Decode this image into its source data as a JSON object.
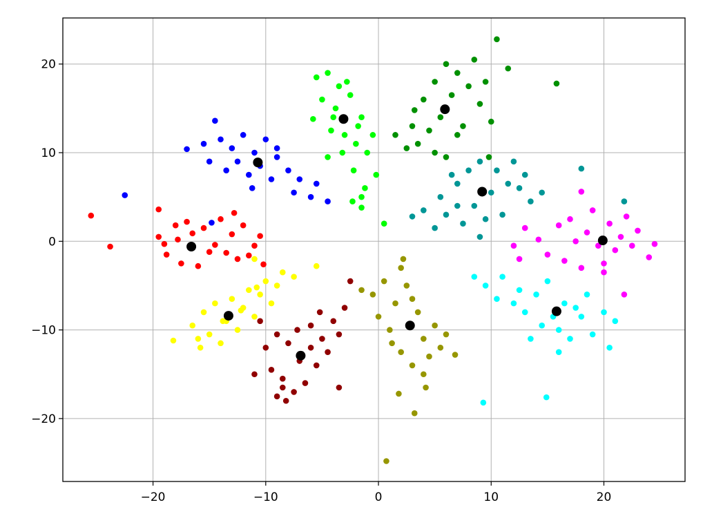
{
  "chart_data": {
    "type": "scatter",
    "xlim": [
      -28,
      27.2
    ],
    "ylim": [
      -27.1,
      25.2
    ],
    "xticks": [
      {
        "value": -20,
        "label": "−20"
      },
      {
        "value": -10,
        "label": "−10"
      },
      0,
      10,
      20
    ],
    "yticks": [
      {
        "value": -20,
        "label": "−20"
      },
      {
        "value": -10,
        "label": "−10"
      },
      0,
      10,
      20
    ],
    "grid": true,
    "series": [
      {
        "color": "#ff0000",
        "x": [
          -19.5,
          -18.8,
          -18,
          -17.5,
          -17,
          -16,
          -15.5,
          -15,
          -14,
          -13,
          -12.5,
          -12,
          -11,
          -10.5,
          -19,
          -17.8,
          -16.5,
          -14.5,
          -13.5,
          -11.5,
          -25.5,
          -23.8,
          -19.5,
          -12.8,
          -10.2
        ],
        "y": [
          0.5,
          -1.5,
          1.8,
          -2.5,
          2.2,
          -2.8,
          1.5,
          -1.2,
          2.5,
          0.8,
          -2,
          1.8,
          -0.5,
          0.6,
          -0.3,
          0.2,
          0.9,
          -0.4,
          -1.3,
          -1.6,
          2.9,
          -0.6,
          3.6,
          3.2,
          -2.6
        ]
      },
      {
        "color": "#0000ff",
        "x": [
          -15.5,
          -15,
          -14,
          -13.5,
          -13,
          -12,
          -11.5,
          -11,
          -10,
          -9.5,
          -9,
          -8,
          -7.5,
          -7,
          -6,
          -5.5,
          -12.5,
          -10.5,
          -9,
          -11.2,
          -22.5,
          -17,
          -14.5,
          -14.8,
          -4.5
        ],
        "y": [
          11,
          9,
          11.5,
          8,
          10.5,
          12,
          7.5,
          10,
          11.5,
          7,
          9.5,
          8,
          5.5,
          7,
          5,
          6.5,
          9,
          8.5,
          10.5,
          6,
          5.2,
          10.4,
          13.6,
          2.1,
          4.5
        ]
      },
      {
        "color": "#00ff00",
        "x": [
          -5.5,
          -5,
          -4.5,
          -4,
          -3.5,
          -3,
          -2.5,
          -2,
          -1.5,
          -1,
          -0.5,
          -4.2,
          -3.2,
          -2.2,
          -1.2,
          -3.8,
          -2.8,
          -1.8,
          -5.8,
          -0.2,
          -1.5,
          -1.5,
          -2.3,
          0.5,
          -4.5
        ],
        "y": [
          18.5,
          16,
          19,
          14,
          17.5,
          12,
          16.5,
          11,
          14,
          10,
          12,
          12.5,
          10,
          8,
          6,
          15,
          18,
          13,
          13.8,
          7.5,
          5,
          3.8,
          4.5,
          2,
          9.5
        ]
      },
      {
        "color": "#009000",
        "x": [
          2.5,
          3,
          3.5,
          4,
          4.5,
          5,
          5.5,
          6,
          6.5,
          7,
          7.5,
          8,
          8.5,
          9,
          9.5,
          5,
          7,
          6,
          3.2,
          10,
          15.8,
          10.5,
          11.5,
          1.5,
          9.8
        ],
        "y": [
          10.5,
          13,
          11,
          16,
          12.5,
          18,
          14,
          20,
          16.5,
          19,
          13,
          17.5,
          20.5,
          15.5,
          18,
          10,
          12,
          9.5,
          14.8,
          13.5,
          17.8,
          22.8,
          19.5,
          12,
          9.5
        ]
      },
      {
        "color": "#009696",
        "x": [
          4,
          5,
          5.5,
          6,
          7,
          7.5,
          8,
          8.5,
          9,
          10,
          10.5,
          11,
          12,
          12.5,
          13,
          13.5,
          7,
          9.5,
          11.5,
          6.5,
          18,
          21.8,
          3,
          14.5,
          9
        ],
        "y": [
          3.5,
          1.5,
          5,
          3,
          6.5,
          2,
          8,
          4,
          9,
          5.5,
          8,
          3,
          9,
          6,
          7.5,
          4.5,
          4,
          2.5,
          6.5,
          7.5,
          8.2,
          4.5,
          2.8,
          5.5,
          0.5
        ]
      },
      {
        "color": "#ff00ff",
        "x": [
          14.2,
          15,
          16,
          16.5,
          17,
          18,
          18.5,
          19,
          20,
          20.5,
          21,
          22,
          22.5,
          23,
          24,
          24.5,
          17.5,
          19.5,
          21.5,
          20,
          18,
          12,
          13,
          21.8,
          12.5
        ],
        "y": [
          0.2,
          -1.5,
          1.8,
          -2.2,
          2.5,
          -3,
          1,
          3.5,
          -2.5,
          2,
          -1,
          2.8,
          -0.5,
          1.2,
          -1.8,
          -0.3,
          0,
          -0.5,
          0.5,
          -3.5,
          5.6,
          -0.5,
          1.5,
          -6,
          -2
        ]
      },
      {
        "color": "#00ffff",
        "x": [
          9.5,
          10.5,
          11,
          12,
          12.5,
          13,
          14,
          14.5,
          15,
          16,
          16.5,
          17,
          18,
          18.5,
          19,
          20,
          20.5,
          21,
          15.5,
          17.5,
          9.3,
          14.9,
          8.5,
          13.5,
          16
        ],
        "y": [
          -5,
          -6.5,
          -4,
          -7,
          -5.5,
          -8,
          -6,
          -9.5,
          -4.5,
          -10,
          -7,
          -11,
          -8.5,
          -6,
          -10.5,
          -8,
          -12,
          -9,
          -8.5,
          -7.5,
          -18.2,
          -17.6,
          -4,
          -11,
          -12.5
        ]
      },
      {
        "color": "#969600",
        "x": [
          -0.5,
          0,
          0.5,
          1,
          1.5,
          2,
          2.5,
          3,
          3.5,
          4,
          4.5,
          5,
          5.5,
          6,
          2,
          3,
          4,
          1.2,
          0.7,
          3.2,
          -1.5,
          2.2,
          6.8,
          1.8,
          4.2
        ],
        "y": [
          -6,
          -8.5,
          -4.5,
          -10,
          -7,
          -12.5,
          -5,
          -14,
          -8,
          -11,
          -13,
          -9.5,
          -12,
          -10.5,
          -3,
          -6.5,
          -15,
          -11.5,
          -24.8,
          -19.4,
          -5.5,
          -2,
          -12.8,
          -17.2,
          -16.5
        ]
      },
      {
        "color": "#900000",
        "x": [
          -10,
          -9.5,
          -9,
          -8.5,
          -8,
          -7.5,
          -7,
          -6.5,
          -6,
          -5.5,
          -5,
          -4.5,
          -4,
          -3.5,
          -7.2,
          -6,
          -8.5,
          -3,
          -11,
          -8.2,
          -10.5,
          -3.5,
          -5.2,
          -2.5,
          -9
        ],
        "y": [
          -12,
          -14.5,
          -10.5,
          -15.5,
          -11.5,
          -17,
          -13.5,
          -16,
          -9.5,
          -14,
          -11,
          -12.5,
          -9,
          -10.5,
          -10,
          -12,
          -16.5,
          -7.5,
          -15,
          -18,
          -9,
          -16.5,
          -8,
          -4.5,
          -17.5
        ]
      },
      {
        "color": "#ffff00",
        "x": [
          -16.5,
          -16,
          -15.5,
          -15,
          -14.5,
          -14,
          -13.5,
          -13,
          -12.5,
          -12,
          -11.5,
          -11,
          -10.5,
          -10,
          -9.5,
          -9,
          -8.5,
          -13.8,
          -12.2,
          -10.8,
          -18.2,
          -15.8,
          -7.5,
          -5.5,
          -11
        ],
        "y": [
          -9.5,
          -11,
          -8,
          -10.5,
          -7,
          -11.5,
          -9,
          -6.5,
          -10,
          -7.5,
          -5.5,
          -8.5,
          -6,
          -4.5,
          -7,
          -5,
          -3.5,
          -9,
          -7.8,
          -5.2,
          -11.2,
          -12,
          -4,
          -2.8,
          -2
        ]
      },
      {
        "color": "#000000",
        "marker_size": 7,
        "x": [
          -16.6,
          -10.7,
          -3.1,
          5.9,
          9.2,
          19.9,
          15.8,
          2.8,
          -6.9,
          -13.3
        ],
        "y": [
          -0.6,
          8.9,
          13.8,
          14.9,
          5.6,
          0.1,
          -7.9,
          -9.5,
          -12.9,
          -8.4
        ]
      }
    ]
  }
}
